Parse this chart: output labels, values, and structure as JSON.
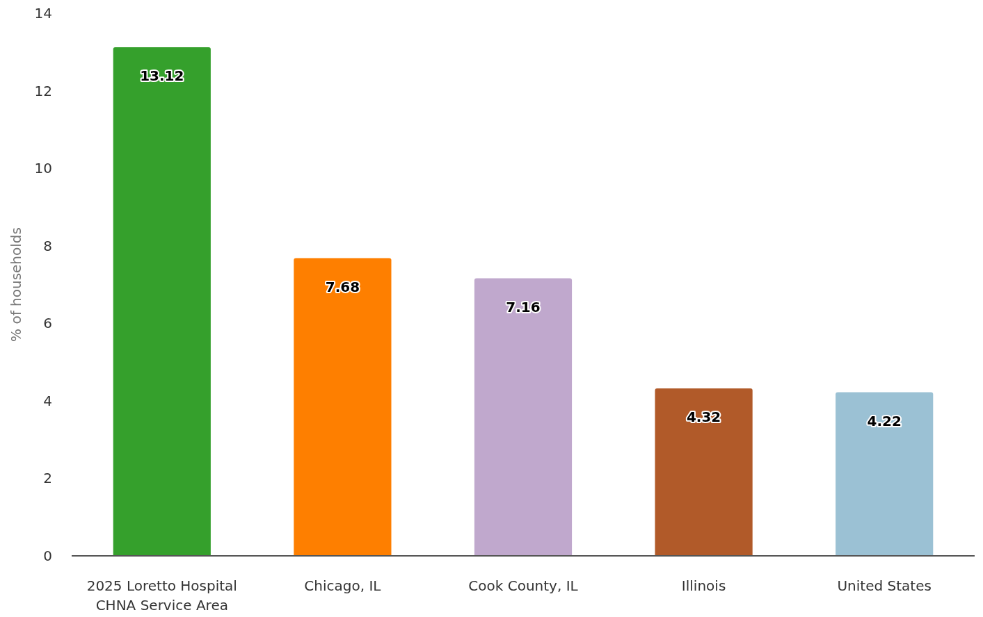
{
  "chart_data": {
    "type": "bar",
    "ylabel": "% of households",
    "categories": [
      "2025 Loretto Hospital CHNA Service Area",
      "Chicago, IL",
      "Cook County, IL",
      "Illinois",
      "United States"
    ],
    "values": [
      13.12,
      7.68,
      7.16,
      4.32,
      4.22
    ],
    "colors": [
      "#35a02c",
      "#fe7f00",
      "#c0a8cd",
      "#b15a29",
      "#9bc1d4"
    ],
    "ylim": [
      0,
      14
    ],
    "yticks": [
      0,
      2,
      4,
      6,
      8,
      10,
      12,
      14
    ],
    "data_labels": true,
    "grid": false
  }
}
